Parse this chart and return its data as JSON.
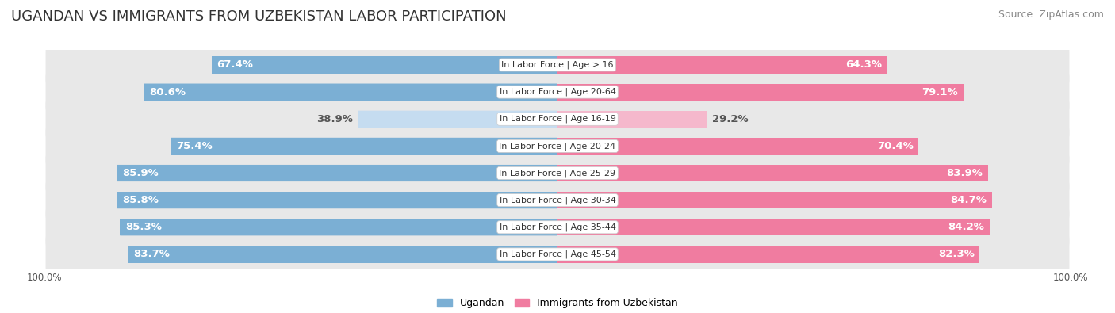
{
  "title": "UGANDAN VS IMMIGRANTS FROM UZBEKISTAN LABOR PARTICIPATION",
  "source": "Source: ZipAtlas.com",
  "categories": [
    "In Labor Force | Age > 16",
    "In Labor Force | Age 20-64",
    "In Labor Force | Age 16-19",
    "In Labor Force | Age 20-24",
    "In Labor Force | Age 25-29",
    "In Labor Force | Age 30-34",
    "In Labor Force | Age 35-44",
    "In Labor Force | Age 45-54"
  ],
  "ugandan": [
    67.4,
    80.6,
    38.9,
    75.4,
    85.9,
    85.8,
    85.3,
    83.7
  ],
  "uzbekistan": [
    64.3,
    79.1,
    29.2,
    70.4,
    83.9,
    84.7,
    84.2,
    82.3
  ],
  "ugandan_color": "#7BAFD4",
  "ugandan_color_light": "#C5DCF0",
  "uzbekistan_color": "#F07CA0",
  "uzbekistan_color_light": "#F5B8CC",
  "row_bg_color": "#E8E8E8",
  "background_color": "#FFFFFF",
  "title_fontsize": 13,
  "source_fontsize": 9,
  "bar_label_fontsize": 9.5,
  "category_fontsize": 8,
  "legend_fontsize": 9,
  "axis_label_fontsize": 8.5,
  "threshold": 50.0
}
